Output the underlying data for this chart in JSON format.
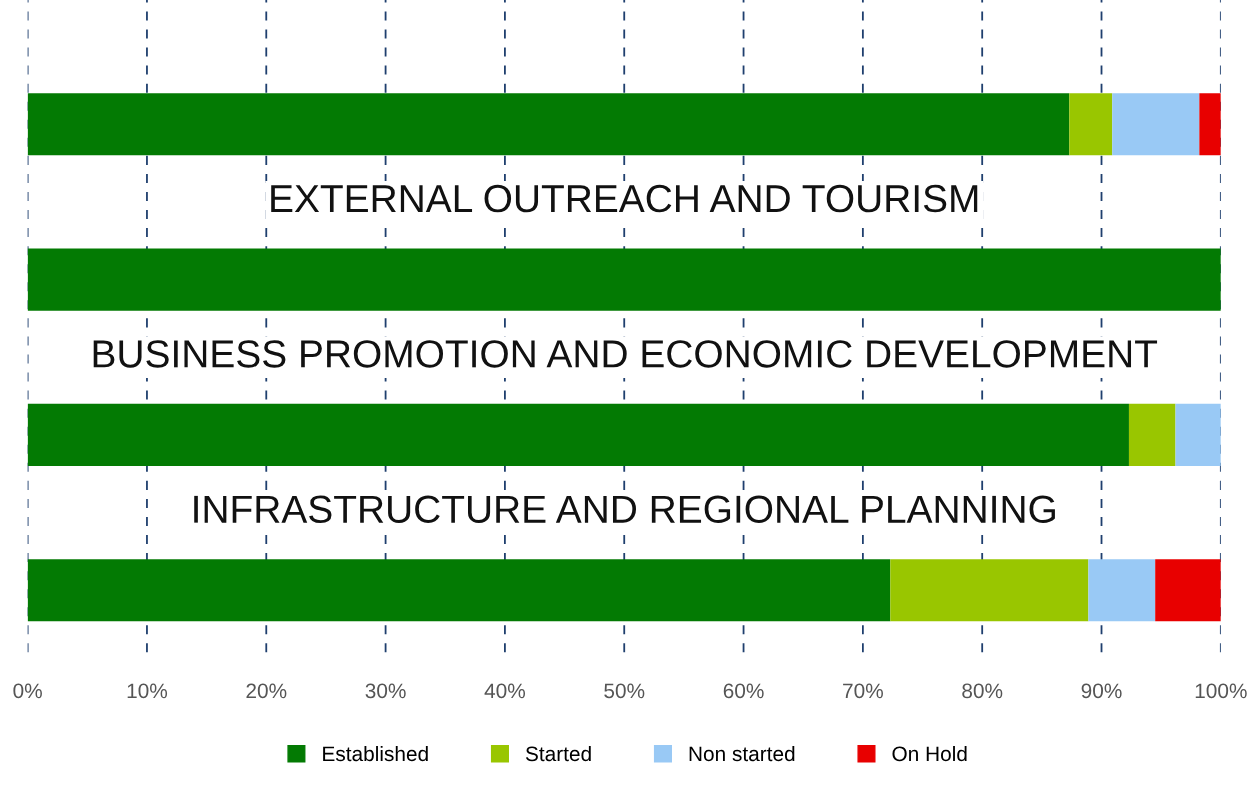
{
  "chart_data": {
    "type": "bar",
    "orientation": "horizontal",
    "stacked": true,
    "categories": [
      null,
      "EXTERNAL OUTREACH AND TOURISM",
      "BUSINESS PROMOTION AND ECONOMIC DEVELOPMENT",
      "INFRASTRUCTURE AND REGIONAL PLANNING"
    ],
    "series": [
      {
        "name": "Established",
        "color": "#037a03",
        "values": [
          87.3,
          100,
          92.3,
          72.3
        ]
      },
      {
        "name": "Started",
        "color": "#99c600",
        "values": [
          3.6,
          0,
          3.9,
          16.6
        ]
      },
      {
        "name": "Non started",
        "color": "#99c9f5",
        "values": [
          7.3,
          0,
          3.8,
          5.6
        ]
      },
      {
        "name": "On Hold",
        "color": "#e80000",
        "values": [
          1.8,
          0,
          0,
          5.5
        ]
      }
    ],
    "xlim": [
      0,
      100
    ],
    "xticks": [
      {
        "value": 0,
        "label": "0%"
      },
      {
        "value": 10,
        "label": "10%"
      },
      {
        "value": 20,
        "label": "20%"
      },
      {
        "value": 30,
        "label": "30%"
      },
      {
        "value": 40,
        "label": "40%"
      },
      {
        "value": 50,
        "label": "50%"
      },
      {
        "value": 60,
        "label": "60%"
      },
      {
        "value": 70,
        "label": "70%"
      },
      {
        "value": 80,
        "label": "80%"
      },
      {
        "value": 90,
        "label": "90%"
      },
      {
        "value": 100,
        "label": "100%"
      }
    ],
    "grid": "x",
    "legend": "bottom",
    "tick_labels": "x"
  }
}
